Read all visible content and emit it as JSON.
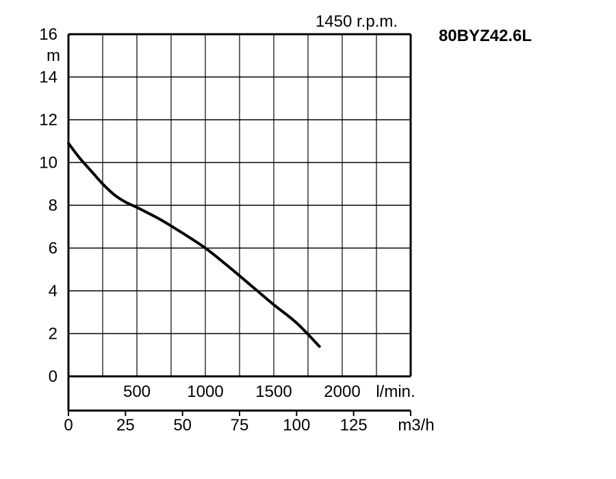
{
  "chart_data": {
    "type": "line",
    "title": "1450 r.p.m.",
    "model": "80BYZ42.6L",
    "ylabel": "m",
    "ylim": [
      0,
      16
    ],
    "yticks": [
      "0",
      "2",
      "4",
      "6",
      "8",
      "10",
      "12",
      "14",
      "16"
    ],
    "xlim_m3h": [
      0,
      150
    ],
    "x_m3h_ticks": [
      "0",
      "25",
      "50",
      "75",
      "100",
      "125"
    ],
    "x_m3h_unit": "m3/h",
    "x_lmin_ticks": [
      "500",
      "1000",
      "1500",
      "2000"
    ],
    "x_lmin_unit": "l/min.",
    "grid": true,
    "series": [
      {
        "x": [
          0,
          5,
          10,
          15,
          20,
          25,
          30,
          40,
          50,
          60,
          70,
          80,
          90,
          100,
          110
        ],
        "y": [
          10.9,
          10.2,
          9.6,
          9.0,
          8.5,
          8.15,
          7.9,
          7.35,
          6.7,
          6.0,
          5.15,
          4.25,
          3.35,
          2.5,
          1.4
        ]
      }
    ]
  }
}
